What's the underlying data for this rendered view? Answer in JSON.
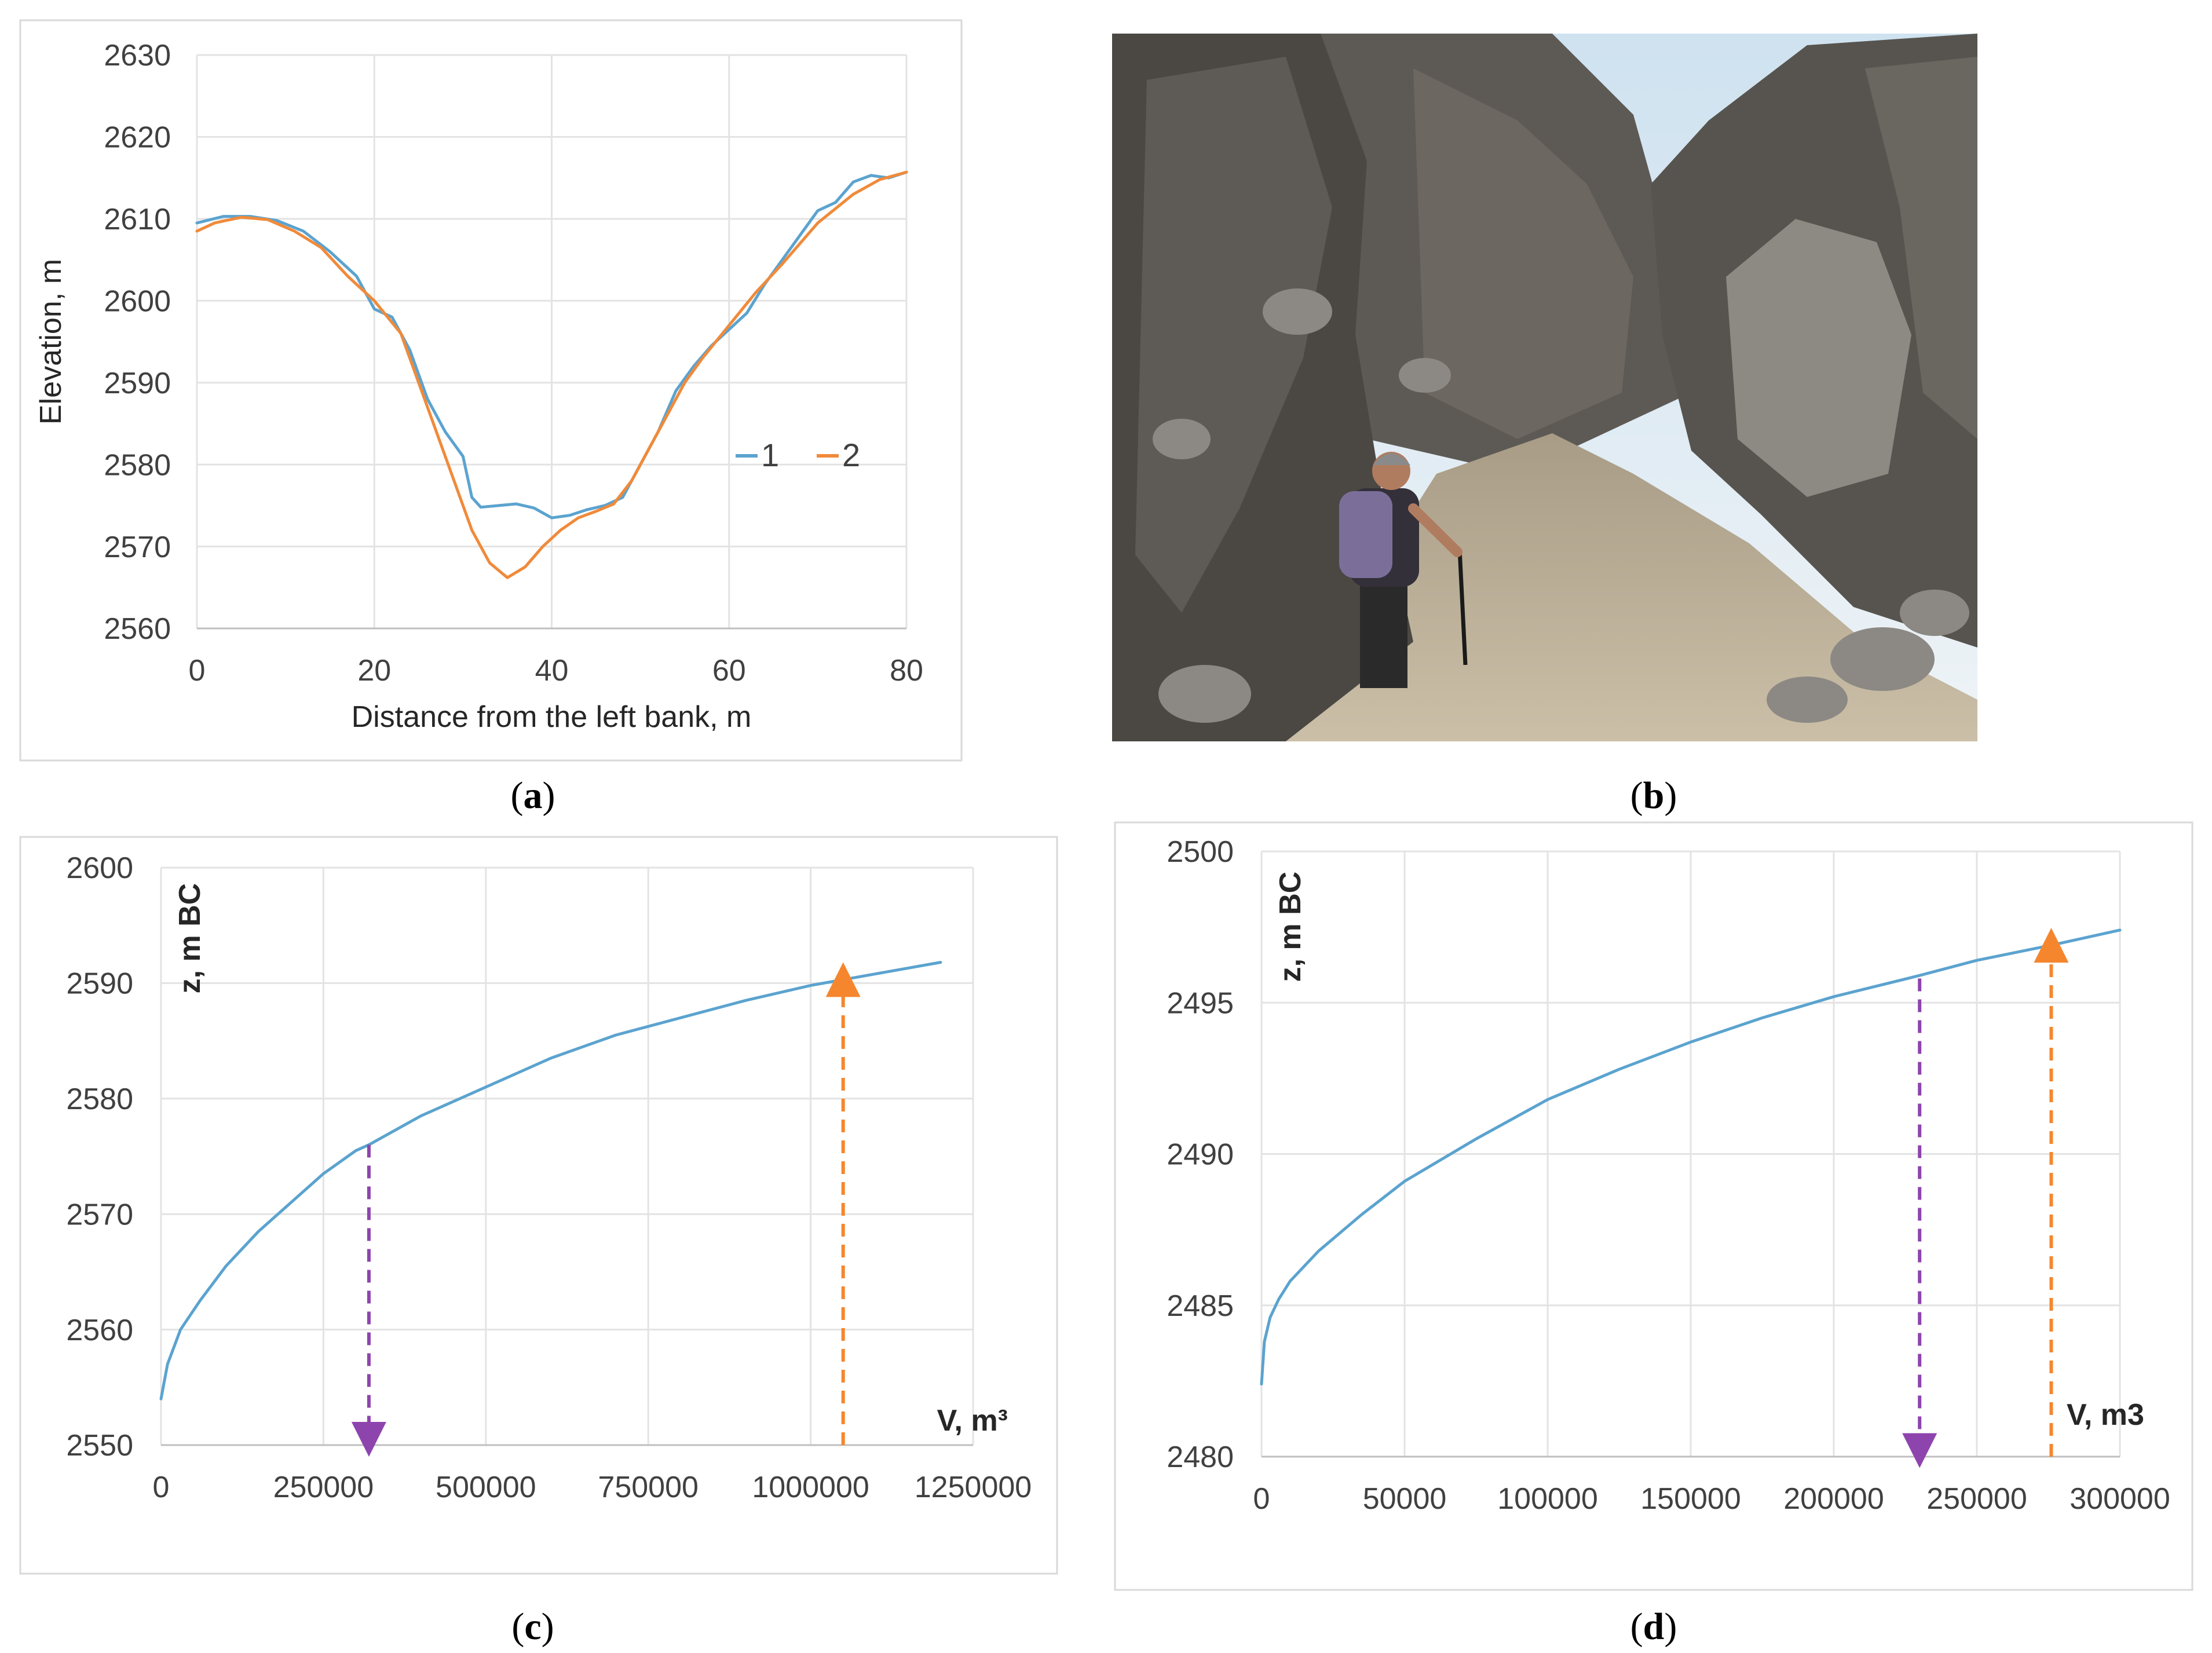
{
  "panels": {
    "a": {
      "caption_open": "(",
      "caption_letter": "a",
      "caption_close": ")"
    },
    "b": {
      "caption_open": "(",
      "caption_letter": "b",
      "caption_close": ")"
    },
    "c": {
      "caption_open": "(",
      "caption_letter": "c",
      "caption_close": ")"
    },
    "d": {
      "caption_open": "(",
      "caption_letter": "d",
      "caption_close": ")"
    }
  },
  "chart_data": [
    {
      "id": "a",
      "type": "line",
      "title": "",
      "xlabel": "Distance from the left bank, m",
      "ylabel": "Elevation, m",
      "xlim": [
        0,
        80
      ],
      "ylim": [
        2560,
        2630
      ],
      "xticks": [
        "0",
        "20",
        "40",
        "60",
        "80"
      ],
      "yticks": [
        "2560",
        "2570",
        "2580",
        "2590",
        "2600",
        "2610",
        "2620",
        "2630"
      ],
      "grid": true,
      "legend_position": "right",
      "series": [
        {
          "name": "1",
          "color": "#5ba3cf",
          "x": [
            0,
            3,
            6,
            9,
            12,
            15,
            18,
            20,
            22,
            24,
            26,
            28,
            30,
            31,
            32,
            34,
            36,
            38,
            40,
            42,
            44,
            46,
            48,
            50,
            52,
            54,
            56,
            58,
            60,
            62,
            64,
            66,
            68,
            70,
            72,
            74,
            76,
            78,
            80
          ],
          "y": [
            2609.5,
            2610.3,
            2610.3,
            2609.8,
            2608.5,
            2606,
            2603,
            2599,
            2598,
            2594,
            2588,
            2584,
            2581,
            2576,
            2574.8,
            2575,
            2575.2,
            2574.7,
            2573.5,
            2573.8,
            2574.5,
            2575,
            2576,
            2580,
            2584,
            2589,
            2592,
            2594.5,
            2596.5,
            2598.5,
            2602,
            2605,
            2608,
            2611,
            2612,
            2614.5,
            2615.3,
            2615,
            2615.7
          ]
        },
        {
          "name": "2",
          "color": "#f08a3a",
          "x": [
            0,
            2,
            5,
            8,
            11,
            14,
            17,
            20,
            23,
            25,
            27,
            29,
            31,
            33,
            35,
            37,
            39,
            41,
            43,
            45,
            47,
            49,
            51,
            53,
            55,
            57,
            60,
            63,
            66,
            70,
            74,
            77,
            80
          ],
          "y": [
            2608.5,
            2609.5,
            2610.2,
            2609.9,
            2608.5,
            2606.5,
            2603,
            2600,
            2596,
            2590,
            2584,
            2578,
            2572,
            2568,
            2566.2,
            2567.5,
            2570,
            2572,
            2573.5,
            2574.3,
            2575.2,
            2578,
            2582,
            2586,
            2590,
            2593,
            2597,
            2601,
            2604.5,
            2609.5,
            2613,
            2614.8,
            2615.7
          ]
        }
      ]
    },
    {
      "id": "c",
      "type": "line",
      "title": "",
      "xlabel": "V, m³",
      "ylabel": "z, m BC",
      "xlim": [
        0,
        1250000
      ],
      "ylim": [
        2550,
        2600
      ],
      "xticks": [
        "0",
        "250000",
        "500000",
        "750000",
        "1000000",
        "1250000"
      ],
      "yticks": [
        "2550",
        "2560",
        "2570",
        "2580",
        "2590",
        "2600"
      ],
      "grid": true,
      "series": [
        {
          "name": "",
          "color": "#5ba3cf",
          "x": [
            0,
            10000,
            30000,
            60000,
            100000,
            150000,
            200000,
            250000,
            300000,
            320000,
            400000,
            500000,
            600000,
            700000,
            800000,
            900000,
            1000000,
            1050000,
            1100000,
            1200000
          ],
          "y": [
            2554,
            2557,
            2560,
            2562.5,
            2565.5,
            2568.5,
            2571,
            2573.5,
            2575.5,
            2576,
            2578.5,
            2581,
            2583.5,
            2585.5,
            2587,
            2588.5,
            2589.8,
            2590.3,
            2590.8,
            2591.8
          ]
        }
      ],
      "markers": [
        {
          "x": 320000,
          "from": 2576,
          "to": 2550.5,
          "color": "#8e44ad",
          "direction": "down"
        },
        {
          "x": 1050000,
          "from": 2550,
          "to": 2590.3,
          "color": "#f5862e",
          "direction": "up"
        }
      ]
    },
    {
      "id": "d",
      "type": "line",
      "title": "",
      "xlabel": "V, m3",
      "ylabel": "z, m BC",
      "xlim": [
        0,
        300000
      ],
      "ylim": [
        2480,
        2500
      ],
      "xticks": [
        "0",
        "50000",
        "100000",
        "150000",
        "200000",
        "250000",
        "300000"
      ],
      "yticks": [
        "2480",
        "2485",
        "2490",
        "2495",
        "2500"
      ],
      "grid": true,
      "series": [
        {
          "name": "",
          "color": "#5ba3cf",
          "x": [
            0,
            1000,
            3000,
            6000,
            10000,
            20000,
            35000,
            50000,
            75000,
            100000,
            125000,
            150000,
            175000,
            200000,
            230000,
            250000,
            276000,
            300000
          ],
          "y": [
            2482.4,
            2483.8,
            2484.6,
            2485.2,
            2485.8,
            2486.8,
            2488,
            2489.1,
            2490.5,
            2491.8,
            2492.8,
            2493.7,
            2494.5,
            2495.2,
            2495.9,
            2496.4,
            2496.9,
            2497.4
          ]
        }
      ],
      "markers": [
        {
          "x": 230000,
          "from": 2495.8,
          "to": 2480.2,
          "color": "#8e44ad",
          "direction": "down"
        },
        {
          "x": 276000,
          "from": 2480,
          "to": 2496.9,
          "color": "#f5862e",
          "direction": "up"
        }
      ]
    }
  ]
}
